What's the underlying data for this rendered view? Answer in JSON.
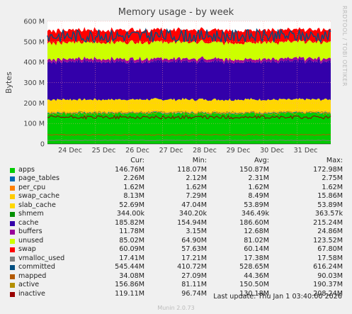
{
  "chart_data": {
    "type": "area",
    "title": "Memory usage - by week",
    "ylabel": "Bytes",
    "side_label": "RRDTOOL / TOBI OETIKER",
    "ylim": [
      0,
      600
    ],
    "y_ticks": [
      "0",
      "100 M",
      "200 M",
      "300 M",
      "400 M",
      "500 M",
      "600 M"
    ],
    "y_tick_values": [
      0,
      100,
      200,
      300,
      400,
      500,
      600
    ],
    "x_ticks": [
      "24 Dec",
      "25 Dec",
      "26 Dec",
      "27 Dec",
      "28 Dec",
      "29 Dec",
      "30 Dec",
      "31 Dec"
    ],
    "columns": [
      "Cur:",
      "Min:",
      "Avg:",
      "Max:"
    ],
    "series": [
      {
        "name": "apps",
        "color": "#00cc00",
        "cur": "146.76M",
        "min": "118.07M",
        "avg": "150.87M",
        "max": "172.98M"
      },
      {
        "name": "page_tables",
        "color": "#0066b3",
        "cur": "2.26M",
        "min": "2.12M",
        "avg": "2.31M",
        "max": "2.75M"
      },
      {
        "name": "per_cpu",
        "color": "#ff8000",
        "cur": "1.62M",
        "min": "1.62M",
        "avg": "1.62M",
        "max": "1.62M"
      },
      {
        "name": "swap_cache",
        "color": "#ffcc00",
        "cur": "8.13M",
        "min": "7.29M",
        "avg": "8.49M",
        "max": "15.86M"
      },
      {
        "name": "slab_cache",
        "color": "#ffd700",
        "cur": "52.69M",
        "min": "47.04M",
        "avg": "53.89M",
        "max": "53.89M"
      },
      {
        "name": "shmem",
        "color": "#008f00",
        "cur": "344.00k",
        "min": "340.20k",
        "avg": "346.49k",
        "max": "363.57k"
      },
      {
        "name": "cache",
        "color": "#3300aa",
        "cur": "185.82M",
        "min": "154.94M",
        "avg": "186.60M",
        "max": "215.24M"
      },
      {
        "name": "buffers",
        "color": "#990099",
        "cur": "11.78M",
        "min": "3.15M",
        "avg": "12.68M",
        "max": "24.86M"
      },
      {
        "name": "unused",
        "color": "#ccff00",
        "cur": "85.02M",
        "min": "64.90M",
        "avg": "81.02M",
        "max": "123.52M"
      },
      {
        "name": "swap",
        "color": "#ff0000",
        "cur": "60.09M",
        "min": "57.63M",
        "avg": "60.14M",
        "max": "67.80M"
      },
      {
        "name": "vmalloc_used",
        "color": "#808080",
        "cur": "17.41M",
        "min": "17.21M",
        "avg": "17.38M",
        "max": "17.58M"
      },
      {
        "name": "committed",
        "color": "#004d80",
        "cur": "545.44M",
        "min": "410.72M",
        "avg": "528.65M",
        "max": "616.24M"
      },
      {
        "name": "mapped",
        "color": "#b35900",
        "cur": "34.08M",
        "min": "27.09M",
        "avg": "44.36M",
        "max": "90.03M"
      },
      {
        "name": "active",
        "color": "#b38f00",
        "cur": "156.86M",
        "min": "81.11M",
        "avg": "150.50M",
        "max": "190.37M"
      },
      {
        "name": "inactive",
        "color": "#990000",
        "cur": "119.11M",
        "min": "96.74M",
        "avg": "130.18M",
        "max": "208.24M"
      }
    ]
  },
  "last_update": "Last update:  Thu Jan  1 03:40:00 2026",
  "footer": "Munin 2.0.73"
}
